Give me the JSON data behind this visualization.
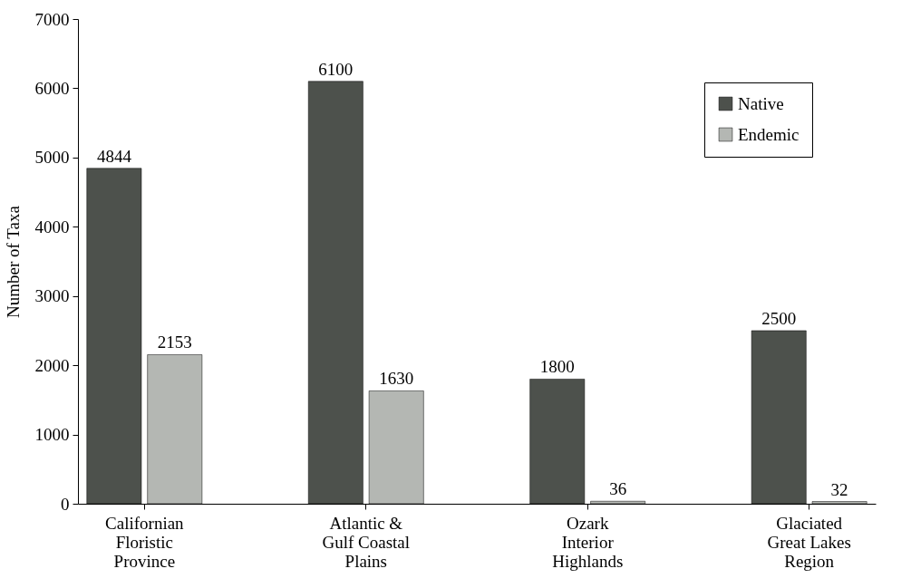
{
  "chart_data": {
    "type": "bar",
    "ylabel": "Number of Taxa",
    "categories": [
      "Californian\nFloristic\nProvince",
      "Atlantic &\nGulf Coastal\nPlains",
      "Ozark\nInterior\nHighlands",
      "Glaciated\nGreat Lakes\nRegion"
    ],
    "series": [
      {
        "name": "Native",
        "color": "#4d514c",
        "values": [
          4844,
          6100,
          1800,
          2500
        ]
      },
      {
        "name": "Endemic",
        "color": "#b4b7b3",
        "values": [
          2153,
          1630,
          36,
          32
        ]
      }
    ],
    "ylim": [
      0,
      7000
    ],
    "yticks": [
      0,
      1000,
      2000,
      3000,
      4000,
      5000,
      6000,
      7000
    ],
    "data_labels": true,
    "legend": "top right",
    "grid": false
  }
}
